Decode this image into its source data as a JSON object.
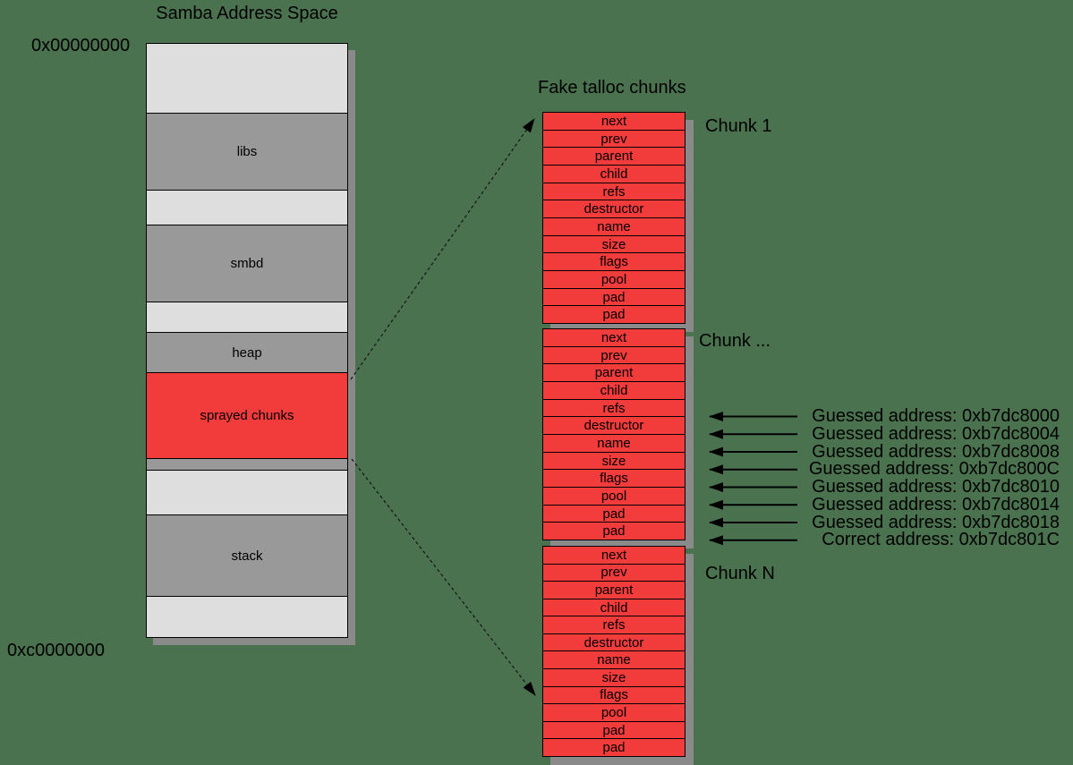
{
  "colors": {
    "background": "#4a724e",
    "light_band": "#dedede",
    "gray_band": "#999999",
    "red": "#f23b3b",
    "shadow": "#8a8a8a",
    "text": "#000000"
  },
  "address_space": {
    "title": "Samba Address Space",
    "start_address": "0x00000000",
    "end_address": "0xc0000000",
    "segments": [
      {
        "label": "",
        "kind": "free"
      },
      {
        "label": "libs",
        "kind": "mapped"
      },
      {
        "label": "",
        "kind": "free"
      },
      {
        "label": "smbd",
        "kind": "mapped"
      },
      {
        "label": "",
        "kind": "free"
      },
      {
        "label": "heap",
        "kind": "mapped"
      },
      {
        "label": "sprayed chunks",
        "kind": "sprayed"
      },
      {
        "label": "",
        "kind": "mapped"
      },
      {
        "label": "",
        "kind": "free"
      },
      {
        "label": "stack",
        "kind": "mapped"
      },
      {
        "label": "",
        "kind": "free"
      }
    ]
  },
  "talloc": {
    "title": "Fake talloc chunks",
    "fields": [
      "next",
      "prev",
      "parent",
      "child",
      "refs",
      "destructor",
      "name",
      "size",
      "flags",
      "pool",
      "pad",
      "pad"
    ],
    "chunks": [
      {
        "label": "Chunk 1"
      },
      {
        "label": "Chunk ..."
      },
      {
        "label": "Chunk N"
      }
    ]
  },
  "annotations": [
    "Guessed address: 0xb7dc8000",
    "Guessed address: 0xb7dc8004",
    "Guessed address: 0xb7dc8008",
    "Guessed address: 0xb7dc800C",
    "Guessed address: 0xb7dc8010",
    "Guessed address: 0xb7dc8014",
    "Guessed address: 0xb7dc8018",
    "Correct address: 0xb7dc801C"
  ]
}
